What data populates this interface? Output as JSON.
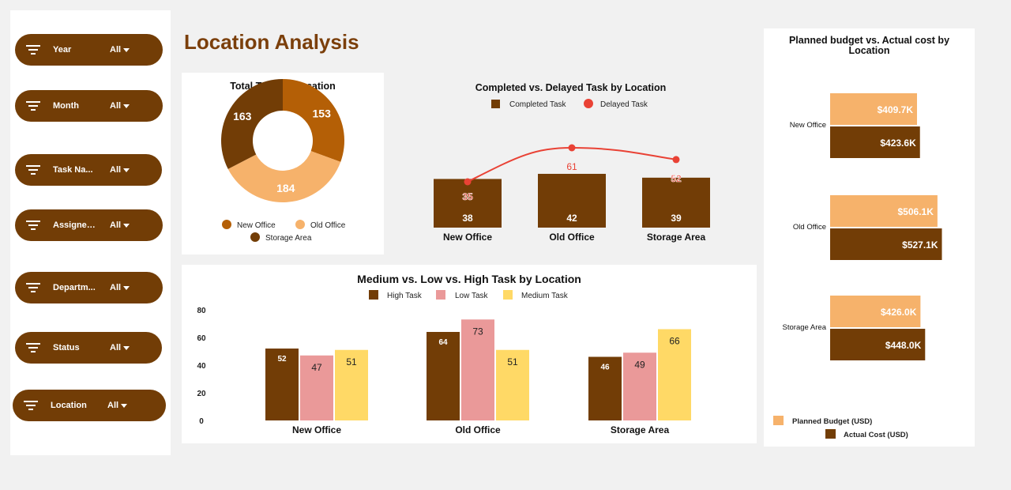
{
  "page_title": "Location Analysis",
  "colors": {
    "dark_brown": "#723d06",
    "orange_brown": "#b45f06",
    "light_orange": "#f6b26b",
    "pink": "#ea9999",
    "yellow": "#ffd966",
    "red": "#e94235",
    "title_brown": "#7b3f0b"
  },
  "filters": [
    {
      "label": "Year",
      "value": "All",
      "icon": "filter-icon"
    },
    {
      "label": "Month",
      "value": "All",
      "icon": "filter-icon"
    },
    {
      "label": "Task Na...",
      "value": "All",
      "icon": "filter-icon"
    },
    {
      "label": "Assigned...",
      "value": "All",
      "icon": "filter-icon"
    },
    {
      "label": "Departm...",
      "value": "All",
      "icon": "filter-icon"
    },
    {
      "label": "Status",
      "value": "All",
      "icon": "filter-icon"
    },
    {
      "label": "Location",
      "value": "All",
      "icon": "filter-icon"
    }
  ],
  "chart_data": [
    {
      "id": "donut",
      "type": "pie",
      "title": "Total Task by Location",
      "categories": [
        "New Office",
        "Old Office",
        "Storage Area"
      ],
      "values": [
        153,
        184,
        163
      ],
      "colors": [
        "#b45f06",
        "#f6b26b",
        "#723d06"
      ],
      "legend": [
        "New Office",
        "Old Office",
        "Storage Area"
      ]
    },
    {
      "id": "combo",
      "type": "bar",
      "title": "Completed vs. Delayed Task by Location",
      "categories": [
        "New Office",
        "Old Office",
        "Storage Area"
      ],
      "series": [
        {
          "name": "Completed Task",
          "type": "bar",
          "values": [
            38,
            42,
            39
          ],
          "color": "#723d06"
        },
        {
          "name": "Delayed Task",
          "type": "line",
          "values": [
            35,
            61,
            52
          ],
          "color": "#e94235"
        }
      ],
      "legend": [
        "Completed Task",
        "Delayed Task"
      ]
    },
    {
      "id": "grouped",
      "type": "bar",
      "title": "Medium vs. Low vs. High Task by Location",
      "categories": [
        "New Office",
        "Old Office",
        "Storage Area"
      ],
      "series": [
        {
          "name": "High Task",
          "values": [
            52,
            64,
            46
          ],
          "color": "#723d06"
        },
        {
          "name": "Low Task",
          "values": [
            47,
            73,
            49
          ],
          "color": "#ea9999"
        },
        {
          "name": "Medium Task",
          "values": [
            51,
            51,
            66
          ],
          "color": "#ffd966"
        }
      ],
      "yticks": [
        "0",
        "20",
        "40",
        "60",
        "80"
      ],
      "ylim": [
        0,
        80
      ],
      "legend": [
        "High Task",
        "Low Task",
        "Medium Task"
      ]
    },
    {
      "id": "budget",
      "type": "bar",
      "orientation": "horizontal",
      "title": "Planned budget vs. Actual cost by Location",
      "categories": [
        "New Office",
        "Old Office",
        "Storage Area"
      ],
      "series": [
        {
          "name": "Planned Budget (USD)",
          "values": [
            409.7,
            506.1,
            426.0
          ],
          "labels": [
            "$409.7K",
            "$506.1K",
            "$426.0K"
          ],
          "color": "#f6b26b"
        },
        {
          "name": "Actual Cost (USD)",
          "values": [
            423.6,
            527.1,
            448.0
          ],
          "labels": [
            "$423.6K",
            "$527.1K",
            "$448.0K"
          ],
          "color": "#723d06"
        }
      ],
      "legend": [
        "Planned Budget (USD)",
        "Actual Cost (USD)"
      ]
    }
  ]
}
